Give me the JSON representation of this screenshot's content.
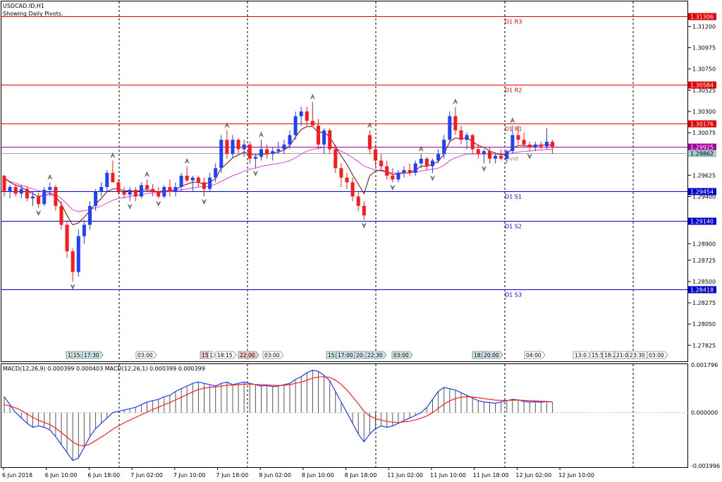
{
  "header": {
    "symbol": "USDCAD.ID,H1",
    "subtitle": "Showing Daily Pivots."
  },
  "colors": {
    "bull": "#1e40ff",
    "bear": "#ff1a1a",
    "ma_fast": "#8b0000",
    "ma_slow": "#e040e0",
    "resistance": "#e00000",
    "support": "#0000cc",
    "pivot": "#a000a0",
    "macd_main": "#1e3cff",
    "macd_signal": "#ff2020",
    "grid": "#000000"
  },
  "chart_data": [
    {
      "type": "candlestick",
      "title": "USDCAD.ID,H1",
      "subtitle": "Showing Daily Pivots.",
      "ylim": [
        1.2767,
        1.3145
      ],
      "y_ticks": [
        "1.31200",
        "1.30975",
        "1.30750",
        "1.30525",
        "1.30300",
        "1.30075",
        "1.29625",
        "1.29400",
        "1.28900",
        "1.28725",
        "1.28500",
        "1.28275",
        "1.28050",
        "1.27825"
      ],
      "pivot_levels": [
        {
          "label": "D1 R3",
          "value": 1.31306,
          "tag": "1.31306",
          "kind": "resistance"
        },
        {
          "label": "D1 R2",
          "value": 1.30584,
          "tag": "1.30584",
          "kind": "resistance"
        },
        {
          "label": "D1 R1",
          "value": 1.30176,
          "tag": "1.30176",
          "kind": "resistance"
        },
        {
          "label": "",
          "value": 1.29925,
          "tag": "1.29925",
          "kind": "price"
        },
        {
          "label": "Pivot",
          "value": 1.29862,
          "tag": "1.29862",
          "kind": "pivot"
        },
        {
          "label": "D1 S1",
          "value": 1.29454,
          "tag": "1.29454",
          "kind": "support"
        },
        {
          "label": "D1 S2",
          "value": 1.2914,
          "tag": "1.29140",
          "kind": "support"
        },
        {
          "label": "D1 S3",
          "value": 1.28418,
          "tag": "1.28418",
          "kind": "support"
        }
      ],
      "candles": [
        [
          1.2962,
          1.2963,
          1.294,
          1.2945
        ],
        [
          1.2945,
          1.2952,
          1.2938,
          1.295
        ],
        [
          1.295,
          1.2953,
          1.294,
          1.2943
        ],
        [
          1.2943,
          1.2952,
          1.2938,
          1.2948
        ],
        [
          1.2948,
          1.295,
          1.2935,
          1.2938
        ],
        [
          1.2938,
          1.2945,
          1.293,
          1.294
        ],
        [
          1.294,
          1.2944,
          1.2928,
          1.2932
        ],
        [
          1.2932,
          1.295,
          1.293,
          1.2947
        ],
        [
          1.2947,
          1.2955,
          1.294,
          1.295
        ],
        [
          1.295,
          1.2952,
          1.2925,
          1.293
        ],
        [
          1.293,
          1.2935,
          1.2905,
          1.291
        ],
        [
          1.291,
          1.2915,
          1.2875,
          1.2882
        ],
        [
          1.2882,
          1.2885,
          1.285,
          1.286
        ],
        [
          1.286,
          1.2905,
          1.2855,
          1.2898
        ],
        [
          1.2898,
          1.2915,
          1.289,
          1.291
        ],
        [
          1.291,
          1.2935,
          1.2905,
          1.293
        ],
        [
          1.293,
          1.2948,
          1.2925,
          1.2945
        ],
        [
          1.2945,
          1.2955,
          1.294,
          1.295
        ],
        [
          1.295,
          1.2968,
          1.2945,
          1.2965
        ],
        [
          1.2965,
          1.2978,
          1.2955,
          1.2955
        ],
        [
          1.2955,
          1.2958,
          1.2942,
          1.2945
        ],
        [
          1.2945,
          1.295,
          1.2938,
          1.2942
        ],
        [
          1.2942,
          1.295,
          1.2935,
          1.2947
        ],
        [
          1.2947,
          1.295,
          1.2935,
          1.294
        ],
        [
          1.294,
          1.2955,
          1.2938,
          1.2952
        ],
        [
          1.2952,
          1.2958,
          1.2945,
          1.2948
        ],
        [
          1.2948,
          1.2953,
          1.294,
          1.2945
        ],
        [
          1.2945,
          1.295,
          1.2938,
          1.294
        ],
        [
          1.294,
          1.2952,
          1.2938,
          1.295
        ],
        [
          1.295,
          1.2958,
          1.294,
          1.2945
        ],
        [
          1.2945,
          1.2955,
          1.294,
          1.295
        ],
        [
          1.295,
          1.2965,
          1.2945,
          1.2962
        ],
        [
          1.2962,
          1.2972,
          1.2955,
          1.2957
        ],
        [
          1.2957,
          1.2962,
          1.2945,
          1.296
        ],
        [
          1.296,
          1.2962,
          1.295,
          1.2955
        ],
        [
          1.2955,
          1.296,
          1.294,
          1.2948
        ],
        [
          1.2948,
          1.2965,
          1.2945,
          1.296
        ],
        [
          1.296,
          1.2975,
          1.2955,
          1.297
        ],
        [
          1.297,
          1.3005,
          1.2965,
          1.3
        ],
        [
          1.3,
          1.301,
          1.298,
          1.2985
        ],
        [
          1.2985,
          1.3005,
          1.298,
          1.3
        ],
        [
          1.3,
          1.3002,
          1.2985,
          1.299
        ],
        [
          1.299,
          1.3,
          1.2982,
          1.2995
        ],
        [
          1.2995,
          1.2998,
          1.2975,
          1.298
        ],
        [
          1.298,
          1.2985,
          1.297,
          1.2982
        ],
        [
          1.2982,
          1.3,
          1.2978,
          1.299
        ],
        [
          1.299,
          1.2995,
          1.298,
          1.2985
        ],
        [
          1.2985,
          1.2992,
          1.2978,
          1.2988
        ],
        [
          1.2988,
          1.2998,
          1.2985,
          1.299
        ],
        [
          1.299,
          1.3,
          1.2985,
          1.2995
        ],
        [
          1.2995,
          1.301,
          1.299,
          1.3005
        ],
        [
          1.3005,
          1.303,
          1.3,
          1.3025
        ],
        [
          1.3025,
          1.3035,
          1.3015,
          1.303
        ],
        [
          1.303,
          1.3035,
          1.3015,
          1.302
        ],
        [
          1.302,
          1.304,
          1.3015,
          1.3015
        ],
        [
          1.3015,
          1.3022,
          1.299,
          1.2995
        ],
        [
          1.2995,
          1.3012,
          1.2985,
          1.301
        ],
        [
          1.301,
          1.3012,
          1.2985,
          1.299
        ],
        [
          1.299,
          1.2995,
          1.2965,
          1.297
        ],
        [
          1.297,
          1.2975,
          1.295,
          1.296
        ],
        [
          1.296,
          1.2965,
          1.2948,
          1.2955
        ],
        [
          1.2955,
          1.296,
          1.2935,
          1.294
        ],
        [
          1.294,
          1.2945,
          1.2925,
          1.293
        ],
        [
          1.293,
          1.2935,
          1.2915,
          1.292
        ],
        [
          1.3005,
          1.301,
          1.2985,
          1.299
        ],
        [
          1.299,
          1.2995,
          1.2972,
          1.2978
        ],
        [
          1.2978,
          1.2985,
          1.2968,
          1.2972
        ],
        [
          1.2972,
          1.2978,
          1.2958,
          1.2962
        ],
        [
          1.2962,
          1.297,
          1.2955,
          1.2958
        ],
        [
          1.2958,
          1.2968,
          1.2955,
          1.2965
        ],
        [
          1.2965,
          1.2972,
          1.296,
          1.2968
        ],
        [
          1.2968,
          1.2975,
          1.2962,
          1.2965
        ],
        [
          1.2965,
          1.2978,
          1.2962,
          1.2975
        ],
        [
          1.2975,
          1.2985,
          1.297,
          1.298
        ],
        [
          1.298,
          1.2982,
          1.2968,
          1.2972
        ],
        [
          1.2972,
          1.298,
          1.2965,
          1.2978
        ],
        [
          1.2978,
          1.299,
          1.2975,
          1.2985
        ],
        [
          1.2985,
          1.3005,
          1.298,
          1.3
        ],
        [
          1.3,
          1.303,
          1.2998,
          1.3025
        ],
        [
          1.3025,
          1.3035,
          1.3005,
          1.301
        ],
        [
          1.301,
          1.3015,
          1.2995,
          1.3
        ],
        [
          1.3,
          1.3008,
          1.299,
          1.3005
        ],
        [
          1.3005,
          1.3006,
          1.2985,
          1.299
        ],
        [
          1.299,
          1.2995,
          1.298,
          1.2985
        ],
        [
          1.2985,
          1.299,
          1.2975,
          1.2988
        ],
        [
          1.2988,
          1.2992,
          1.2975,
          1.298
        ],
        [
          1.298,
          1.2985,
          1.2975,
          1.2983
        ],
        [
          1.2983,
          1.299,
          1.2978,
          1.298
        ],
        [
          1.298,
          1.299,
          1.2975,
          1.2988
        ],
        [
          1.2988,
          1.3015,
          1.2985,
          1.3005
        ],
        [
          1.3005,
          1.3015,
          1.2995,
          1.3
        ],
        [
          1.3,
          1.3008,
          1.2992,
          1.2995
        ],
        [
          1.2995,
          1.2998,
          1.2988,
          1.2992
        ],
        [
          1.2992,
          1.2998,
          1.2988,
          1.2995
        ],
        [
          1.2995,
          1.2998,
          1.299,
          1.2993
        ],
        [
          1.2993,
          1.3012,
          1.299,
          1.2998
        ],
        [
          1.2998,
          1.3,
          1.2985,
          1.2992
        ]
      ],
      "ma_fast": [
        1.296,
        1.2955,
        1.2952,
        1.295,
        1.2946,
        1.2943,
        1.294,
        1.2941,
        1.2943,
        1.294,
        1.2932,
        1.292,
        1.291,
        1.2912,
        1.2918,
        1.2925,
        1.2932,
        1.2938,
        1.2945,
        1.2948,
        1.2948,
        1.2946,
        1.2946,
        1.2945,
        1.2947,
        1.2947,
        1.2946,
        1.2945,
        1.2946,
        1.2946,
        1.2947,
        1.2951,
        1.2953,
        1.2955,
        1.2955,
        1.2953,
        1.2955,
        1.2959,
        1.297,
        1.2975,
        1.2981,
        1.2984,
        1.2987,
        1.2985,
        1.2984,
        1.2985,
        1.2985,
        1.2986,
        1.2987,
        1.2989,
        1.2994,
        1.3003,
        1.3011,
        1.3014,
        1.3014,
        1.3008,
        1.3008,
        1.3003,
        1.2993,
        1.2983,
        1.2974,
        1.2963,
        1.2953,
        1.2943,
        1.2962,
        1.2967,
        1.2968,
        1.2966,
        1.2963,
        1.2964,
        1.2965,
        1.2965,
        1.2968,
        1.2972,
        1.2972,
        1.2974,
        1.2977,
        1.2985,
        1.2998,
        1.3002,
        1.3001,
        1.3002,
        1.2998,
        1.2994,
        1.2992,
        1.2988,
        1.2986,
        1.2984,
        1.2985,
        1.2991,
        1.2994,
        1.2994,
        1.2993,
        1.2994,
        1.2994,
        1.2995,
        1.2994
      ],
      "ma_slow": [
        1.2958,
        1.2956,
        1.2954,
        1.2952,
        1.295,
        1.2948,
        1.2946,
        1.2945,
        1.2944,
        1.2942,
        1.2938,
        1.2932,
        1.2926,
        1.2924,
        1.2925,
        1.2926,
        1.2928,
        1.293,
        1.2933,
        1.2936,
        1.2938,
        1.2939,
        1.294,
        1.2941,
        1.2942,
        1.2943,
        1.2944,
        1.2944,
        1.2945,
        1.2945,
        1.2946,
        1.2947,
        1.2948,
        1.2949,
        1.295,
        1.295,
        1.2951,
        1.2953,
        1.2956,
        1.2959,
        1.2962,
        1.2964,
        1.2967,
        1.2969,
        1.297,
        1.2972,
        1.2973,
        1.2974,
        1.2975,
        1.2976,
        1.2978,
        1.2981,
        1.2985,
        1.2988,
        1.299,
        1.2991,
        1.2992,
        1.2992,
        1.2991,
        1.2988,
        1.2985,
        1.2981,
        1.2977,
        1.2972,
        1.297,
        1.2968,
        1.2967,
        1.2966,
        1.2965,
        1.2965,
        1.2965,
        1.2965,
        1.2966,
        1.2967,
        1.2968,
        1.2969,
        1.297,
        1.2973,
        1.2978,
        1.2981,
        1.2983,
        1.2985,
        1.2985,
        1.2985,
        1.2985,
        1.2985,
        1.2985,
        1.2985,
        1.2985,
        1.2986,
        1.2987,
        1.2988,
        1.2988,
        1.2989,
        1.2989,
        1.299,
        1.299
      ],
      "time_markers": [
        "1",
        "15:",
        "17:30",
        "03:00",
        "15:",
        "1",
        "18:15",
        "22:00",
        "03:00",
        "15:",
        "17:00",
        "20:",
        "22:30",
        "03:00",
        "18:",
        "20:00",
        "04:00",
        "13:0",
        "15:5",
        "18:2",
        "21:0",
        "23:30",
        "03:00"
      ]
    },
    {
      "type": "line",
      "title": "MACD(12,26,9) 0.000399 0.000403 MACD(12,26,1) 0.000399 0.000399",
      "ylim": [
        -0.001996,
        0.001796
      ],
      "y_ticks": [
        "0.001796",
        "0.000000",
        "-0.001996"
      ],
      "x_labels": [
        "6 Jun 2018",
        "6 Jun 10:00",
        "6 Jun 18:00",
        "7 Jun 02:00",
        "7 Jun 10:00",
        "7 Jun 18:00",
        "8 Jun 02:00",
        "8 Jun 10:00",
        "8 Jun 18:00",
        "11 Jun 02:00",
        "11 Jun 10:00",
        "11 Jun 18:00",
        "12 Jun 02:00",
        "12 Jun 10:00"
      ],
      "series": [
        {
          "name": "MACD(12,26,1)",
          "values": [
            0.0006,
            0.0003,
            0.0,
            -0.0002,
            -0.0004,
            -0.00055,
            -0.0005,
            -0.00055,
            -0.00065,
            -0.0009,
            -0.0012,
            -0.0015,
            -0.0018,
            -0.0017,
            -0.0013,
            -0.0009,
            -0.0006,
            -0.0004,
            -0.0002,
            0.0,
            5e-05,
            0.0001,
            0.00015,
            0.0002,
            0.0003,
            0.0004,
            0.00045,
            0.0005,
            0.0006,
            0.00065,
            0.0008,
            0.0009,
            0.001,
            0.0011,
            0.00115,
            0.0011,
            0.00105,
            0.001,
            0.0011,
            0.00115,
            0.00105,
            0.0011,
            0.00115,
            0.0011,
            0.00105,
            0.001,
            0.00102,
            0.00098,
            0.001,
            0.00105,
            0.0011,
            0.00125,
            0.00135,
            0.0015,
            0.0016,
            0.00155,
            0.0014,
            0.0012,
            0.0008,
            0.0004,
            0.0,
            -0.0004,
            -0.0008,
            -0.0011,
            -0.0008,
            -0.0006,
            -0.0005,
            -0.00055,
            -0.0005,
            -0.0004,
            -0.0003,
            -0.0002,
            -0.0001,
            0.0,
            0.0002,
            0.0005,
            0.0008,
            0.00095,
            0.0009,
            0.00085,
            0.00075,
            0.00065,
            0.00055,
            0.00045,
            0.0004,
            0.00038,
            0.00035,
            0.0004,
            0.00045,
            0.0005,
            0.00048,
            0.00042,
            0.0004,
            0.00041,
            0.00039,
            0.00042,
            0.0004
          ]
        },
        {
          "name": "MACD(12,26,9)",
          "values": [
            0.0003,
            0.00025,
            0.00018,
            8e-05,
            -5e-05,
            -0.00018,
            -0.00028,
            -0.00037,
            -0.00045,
            -0.00058,
            -0.00075,
            -0.00092,
            -0.0011,
            -0.00122,
            -0.00125,
            -0.00118,
            -0.00105,
            -0.00092,
            -0.00078,
            -0.00062,
            -0.0005,
            -0.00038,
            -0.00028,
            -0.00018,
            -8e-05,
            2e-05,
            0.00012,
            0.0002,
            0.0003,
            0.00038,
            0.00048,
            0.00058,
            0.00068,
            0.00078,
            0.00087,
            0.00092,
            0.00095,
            0.00097,
            0.001,
            0.00103,
            0.00104,
            0.00105,
            0.00107,
            0.00107,
            0.00106,
            0.00105,
            0.00104,
            0.00103,
            0.00102,
            0.00103,
            0.00105,
            0.0011,
            0.00115,
            0.00122,
            0.0013,
            0.00134,
            0.00135,
            0.00132,
            0.00122,
            0.00106,
            0.00085,
            0.0006,
            0.00033,
            5e-05,
            -0.00012,
            -0.00022,
            -0.00028,
            -0.00033,
            -0.00036,
            -0.00037,
            -0.00035,
            -0.00032,
            -0.00027,
            -0.00021,
            -0.00012,
            0.0,
            0.00016,
            0.00032,
            0.00044,
            0.00053,
            0.00058,
            0.0006,
            0.00059,
            0.00056,
            0.00053,
            0.0005,
            0.00047,
            0.00046,
            0.00046,
            0.00047,
            0.00047,
            0.00046,
            0.00045,
            0.00044,
            0.00043,
            0.00042,
            0.0004
          ]
        }
      ]
    }
  ]
}
